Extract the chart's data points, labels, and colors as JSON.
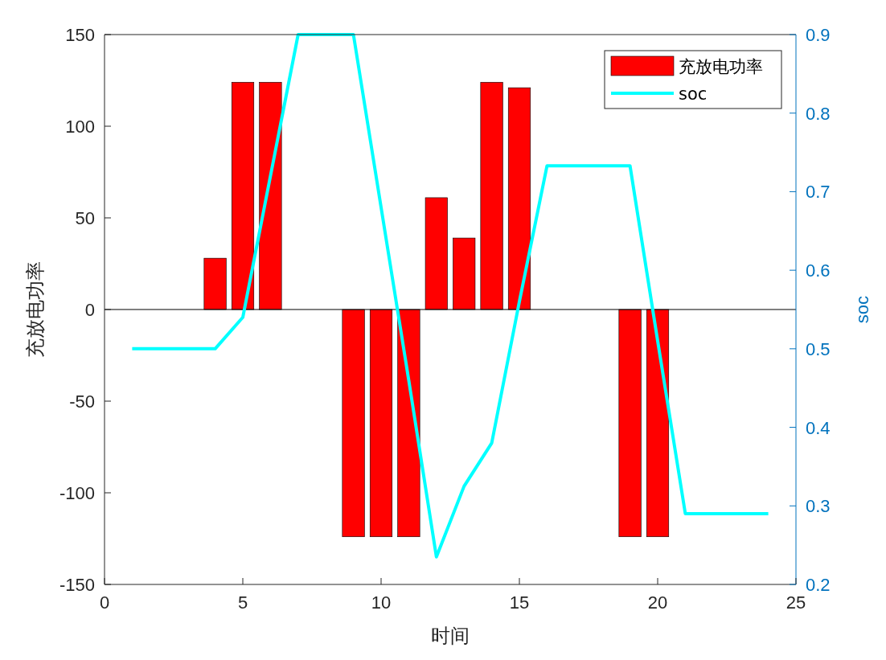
{
  "chart_data": {
    "type": "bar",
    "xlabel": "时间",
    "ylabel": "充放电功率",
    "y2label": "soc",
    "x": [
      1,
      2,
      3,
      4,
      5,
      6,
      7,
      8,
      9,
      10,
      11,
      12,
      13,
      14,
      15,
      16,
      17,
      18,
      19,
      20,
      21,
      22,
      23,
      24
    ],
    "xlim": [
      0,
      25
    ],
    "xticks": [
      0,
      5,
      10,
      15,
      20,
      25
    ],
    "ylim": [
      -150,
      150
    ],
    "yticks": [
      -150,
      -100,
      -50,
      0,
      50,
      100,
      150
    ],
    "y2lim": [
      0.2,
      0.9
    ],
    "y2ticks": [
      0.2,
      0.3,
      0.4,
      0.5,
      0.6,
      0.7,
      0.8,
      0.9
    ],
    "legend": "top right",
    "series": [
      {
        "name": "充放电功率",
        "color": "#ff0000",
        "values": [
          0,
          0,
          0,
          28,
          124,
          124,
          0,
          0,
          -124,
          -124,
          -124,
          61,
          39,
          124,
          121,
          0,
          0,
          0,
          -124,
          -124,
          0,
          0,
          0,
          0
        ]
      },
      {
        "name": "soc",
        "type": "line",
        "axis": "y2",
        "color": "#00ffff",
        "values": [
          0.5,
          0.5,
          0.5,
          0.5,
          0.54,
          0.72,
          0.9,
          0.9,
          0.9,
          0.68,
          0.46,
          0.235,
          0.325,
          0.38,
          0.56,
          0.733,
          0.733,
          0.733,
          0.733,
          0.51,
          0.29,
          0.29,
          0.29,
          0.29
        ]
      }
    ]
  }
}
